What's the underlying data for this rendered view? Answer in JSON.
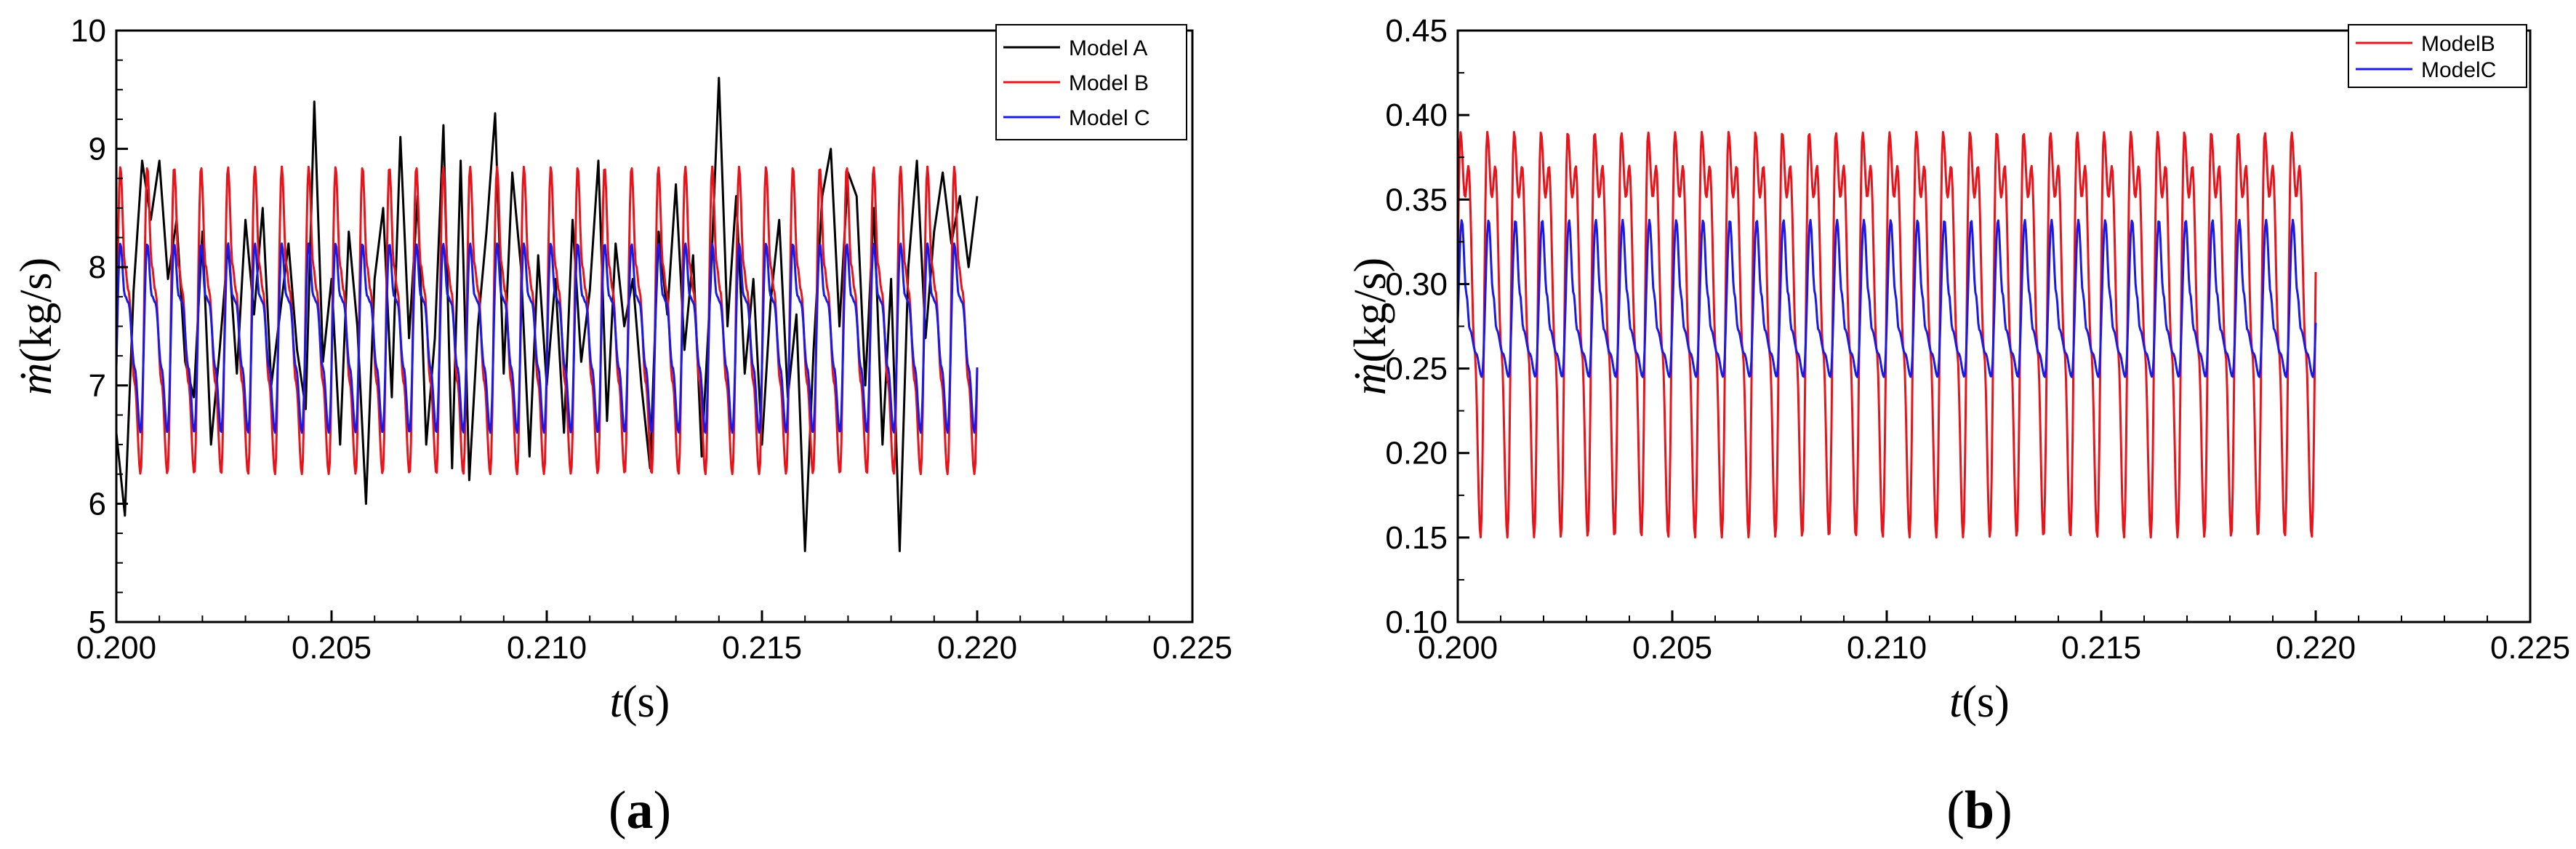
{
  "chart_data": [
    {
      "type": "line",
      "panel_label": "a",
      "xlabel_var": "t",
      "xlabel_unit": "(s)",
      "ylabel_var": "ṁ",
      "ylabel_unit": "(kg/s)",
      "xlim": [
        0.2,
        0.225
      ],
      "ylim": [
        5,
        10
      ],
      "xticks": [
        "0.200",
        "0.205",
        "0.210",
        "0.215",
        "0.220",
        "0.225"
      ],
      "yticks": [
        "5",
        "6",
        "7",
        "8",
        "9",
        "10"
      ],
      "legend_position": "top-right",
      "series": [
        {
          "name": "Model A",
          "color": "#000000",
          "x": [
            0.2,
            0.2002,
            0.2004,
            0.2006,
            0.2008,
            0.201,
            0.2012,
            0.2014,
            0.2016,
            0.2018,
            0.202,
            0.2022,
            0.2024,
            0.2026,
            0.2028,
            0.203,
            0.2032,
            0.2034,
            0.2036,
            0.2038,
            0.204,
            0.2042,
            0.2044,
            0.2046,
            0.2048,
            0.205,
            0.2052,
            0.2054,
            0.2056,
            0.2058,
            0.206,
            0.2062,
            0.2064,
            0.2066,
            0.2068,
            0.207,
            0.2072,
            0.2074,
            0.2076,
            0.2078,
            0.208,
            0.2082,
            0.2084,
            0.2086,
            0.2088,
            0.209,
            0.2092,
            0.2094,
            0.2096,
            0.2098,
            0.21,
            0.2102,
            0.2104,
            0.2106,
            0.2108,
            0.211,
            0.2112,
            0.2114,
            0.2116,
            0.2118,
            0.212,
            0.2122,
            0.2124,
            0.2126,
            0.2128,
            0.213,
            0.2132,
            0.2134,
            0.2136,
            0.2138,
            0.214,
            0.2142,
            0.2144,
            0.2146,
            0.2148,
            0.215,
            0.2152,
            0.2154,
            0.2156,
            0.2158,
            0.216,
            0.2162,
            0.2164,
            0.2166,
            0.2168,
            0.217,
            0.2172,
            0.2174,
            0.2176,
            0.2178,
            0.218,
            0.2182,
            0.2184,
            0.2186,
            0.2188,
            0.219,
            0.2192,
            0.2194,
            0.2196,
            0.2198,
            0.22
          ],
          "values": [
            6.6,
            5.9,
            7.8,
            8.9,
            8.4,
            8.9,
            7.9,
            8.4,
            7.2,
            6.9,
            8.3,
            6.5,
            7.3,
            8.2,
            7.1,
            8.4,
            7.6,
            8.5,
            7.0,
            7.6,
            8.2,
            7.3,
            6.8,
            9.4,
            7.2,
            7.9,
            6.5,
            8.3,
            7.5,
            6.0,
            7.9,
            8.5,
            6.9,
            9.1,
            7.4,
            8.6,
            6.5,
            7.4,
            9.2,
            6.3,
            8.9,
            6.2,
            7.5,
            8.3,
            9.3,
            7.1,
            8.8,
            8.0,
            6.4,
            8.1,
            7.0,
            7.9,
            6.6,
            8.4,
            7.2,
            7.8,
            8.9,
            6.7,
            8.2,
            7.5,
            7.9,
            7.0,
            6.3,
            8.3,
            7.6,
            8.7,
            7.3,
            8.1,
            6.4,
            7.8,
            9.6,
            7.5,
            8.6,
            7.1,
            7.9,
            6.5,
            7.7,
            8.4,
            6.9,
            7.6,
            5.6,
            7.3,
            8.6,
            9.0,
            7.5,
            8.8,
            8.6,
            7.0,
            8.5,
            6.5,
            7.9,
            5.6,
            8.0,
            8.9,
            7.4,
            8.3,
            8.8,
            8.2,
            8.6,
            8.0,
            8.6
          ]
        },
        {
          "name": "Model B",
          "color": "#e8141b",
          "period": 0.000625,
          "min": 6.25,
          "max": 8.85,
          "secondary_peak": 7.8
        },
        {
          "name": "Model C",
          "color": "#1a1ae6",
          "period": 0.000625,
          "min": 6.6,
          "max": 8.2,
          "secondary_peak": 7.7
        }
      ]
    },
    {
      "type": "line",
      "panel_label": "b",
      "xlabel_var": "t",
      "xlabel_unit": "(s)",
      "ylabel_var": "ṁ",
      "ylabel_unit": "(kg/s)",
      "xlim": [
        0.2,
        0.225
      ],
      "ylim": [
        0.1,
        0.45
      ],
      "xticks": [
        "0.200",
        "0.205",
        "0.210",
        "0.215",
        "0.220",
        "0.225"
      ],
      "yticks": [
        "0.10",
        "0.15",
        "0.20",
        "0.25",
        "0.30",
        "0.35",
        "0.40",
        "0.45"
      ],
      "legend_position": "top-right",
      "series": [
        {
          "name": "ModelB",
          "color": "#e8141b",
          "period": 0.000625,
          "min": 0.15,
          "max": 0.39,
          "secondary_peak": 0.37
        },
        {
          "name": "ModelC",
          "color": "#1a1ae6",
          "period": 0.000625,
          "min": 0.245,
          "max": 0.338,
          "secondary_peak": 0.273
        }
      ]
    }
  ]
}
